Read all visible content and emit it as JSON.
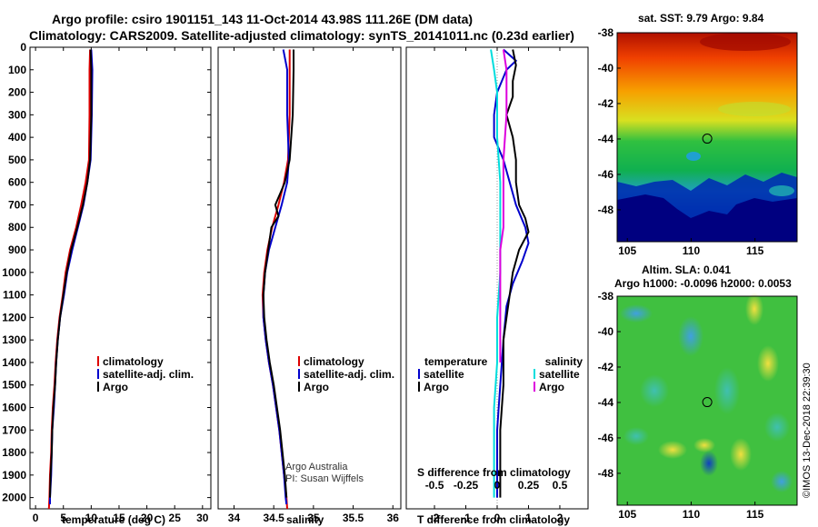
{
  "title": {
    "line1": "Argo profile: csiro 1901151_143 11-Oct-2014 43.98S 111.26E (DM data)",
    "line2": "Climatology: CARS2009. Satellite-adjusted climatology: synTS_20141011.nc (0.23d earlier)"
  },
  "credit": {
    "line1": "Argo Australia",
    "line2": "PI: Susan Wijffels"
  },
  "watermark": "©IMOS 13-Dec-2018 22:39:30",
  "colors": {
    "climatology": "#dd0000",
    "satellite": "#0000cc",
    "argo": "#000000",
    "sat_salinity": "#00dddd",
    "argo_salinity": "#dd00dd"
  },
  "chart_data": [
    {
      "type": "line",
      "id": "temperature",
      "xlabel": "temperature (deg C)",
      "ylabel": "",
      "xlim": [
        -1,
        31.5
      ],
      "ylim": [
        2050,
        0
      ],
      "xticks": [
        0,
        5,
        10,
        15,
        20,
        25,
        30
      ],
      "yticks": [
        0,
        100,
        200,
        300,
        400,
        500,
        600,
        700,
        800,
        900,
        1000,
        1100,
        1200,
        1300,
        1400,
        1500,
        1600,
        1700,
        1800,
        1900,
        2000
      ],
      "legend": [
        "climatology",
        "satellite-adj. clim.",
        "Argo"
      ],
      "series": [
        {
          "name": "climatology",
          "color": "#dd0000",
          "points": [
            [
              9.8,
              10
            ],
            [
              9.7,
              100
            ],
            [
              9.7,
              300
            ],
            [
              9.6,
              500
            ],
            [
              9.0,
              600
            ],
            [
              8.2,
              700
            ],
            [
              7.3,
              800
            ],
            [
              6.2,
              900
            ],
            [
              5.4,
              1000
            ],
            [
              4.9,
              1100
            ],
            [
              4.3,
              1200
            ],
            [
              3.9,
              1300
            ],
            [
              3.6,
              1400
            ],
            [
              3.4,
              1500
            ],
            [
              3.1,
              1600
            ],
            [
              2.9,
              1700
            ],
            [
              2.8,
              1800
            ],
            [
              2.6,
              1900
            ],
            [
              2.5,
              2000
            ],
            [
              2.4,
              2050
            ]
          ]
        },
        {
          "name": "satellite-adj. clim.",
          "color": "#0000cc",
          "points": [
            [
              10.0,
              10
            ],
            [
              10.2,
              100
            ],
            [
              10.1,
              300
            ],
            [
              9.9,
              500
            ],
            [
              9.3,
              600
            ],
            [
              8.6,
              700
            ],
            [
              7.6,
              800
            ],
            [
              6.6,
              900
            ],
            [
              5.7,
              1000
            ],
            [
              5.1,
              1100
            ],
            [
              4.4,
              1200
            ],
            [
              4.0,
              1300
            ],
            [
              3.7,
              1400
            ],
            [
              3.5,
              1500
            ],
            [
              3.3,
              1600
            ],
            [
              3.0,
              1700
            ],
            [
              2.9,
              1800
            ],
            [
              2.8,
              1900
            ],
            [
              2.6,
              2000
            ],
            [
              2.6,
              2030
            ]
          ]
        },
        {
          "name": "Argo",
          "color": "#000000",
          "points": [
            [
              9.9,
              10
            ],
            [
              10.0,
              100
            ],
            [
              10.0,
              300
            ],
            [
              9.8,
              500
            ],
            [
              9.3,
              600
            ],
            [
              8.5,
              700
            ],
            [
              7.5,
              800
            ],
            [
              6.4,
              900
            ],
            [
              5.6,
              1000
            ],
            [
              5.0,
              1100
            ],
            [
              4.4,
              1200
            ],
            [
              4.0,
              1300
            ],
            [
              3.7,
              1400
            ],
            [
              3.5,
              1500
            ],
            [
              3.2,
              1600
            ],
            [
              3.0,
              1700
            ],
            [
              2.9,
              1800
            ],
            [
              2.7,
              1900
            ],
            [
              2.6,
              2000
            ]
          ]
        }
      ]
    },
    {
      "type": "line",
      "id": "salinity",
      "xlabel": "salinity",
      "ylabel": "",
      "xlim": [
        33.8,
        36.1
      ],
      "ylim": [
        2050,
        0
      ],
      "xticks": [
        34,
        34.5,
        35,
        35.5,
        36
      ],
      "legend": [
        "climatology",
        "satellite-adj. clim.",
        "Argo"
      ],
      "series": [
        {
          "name": "climatology",
          "color": "#dd0000",
          "points": [
            [
              34.7,
              10
            ],
            [
              34.7,
              100
            ],
            [
              34.7,
              300
            ],
            [
              34.68,
              500
            ],
            [
              34.63,
              600
            ],
            [
              34.56,
              700
            ],
            [
              34.48,
              800
            ],
            [
              34.42,
              900
            ],
            [
              34.38,
              1000
            ],
            [
              34.36,
              1100
            ],
            [
              34.37,
              1200
            ],
            [
              34.4,
              1300
            ],
            [
              34.44,
              1400
            ],
            [
              34.49,
              1500
            ],
            [
              34.53,
              1600
            ],
            [
              34.57,
              1700
            ],
            [
              34.6,
              1800
            ],
            [
              34.63,
              1900
            ],
            [
              34.66,
              2000
            ],
            [
              34.67,
              2050
            ]
          ]
        },
        {
          "name": "satellite-adj. clim.",
          "color": "#0000cc",
          "points": [
            [
              34.62,
              10
            ],
            [
              34.67,
              100
            ],
            [
              34.67,
              300
            ],
            [
              34.69,
              500
            ],
            [
              34.67,
              600
            ],
            [
              34.6,
              700
            ],
            [
              34.52,
              800
            ],
            [
              34.44,
              900
            ],
            [
              34.39,
              1000
            ],
            [
              34.37,
              1100
            ],
            [
              34.37,
              1200
            ],
            [
              34.4,
              1300
            ],
            [
              34.44,
              1400
            ],
            [
              34.49,
              1500
            ],
            [
              34.53,
              1600
            ],
            [
              34.57,
              1700
            ],
            [
              34.6,
              1800
            ],
            [
              34.63,
              1900
            ],
            [
              34.65,
              2000
            ],
            [
              34.66,
              2030
            ]
          ]
        },
        {
          "name": "Argo",
          "color": "#000000",
          "points": [
            [
              34.75,
              10
            ],
            [
              34.75,
              100
            ],
            [
              34.74,
              300
            ],
            [
              34.7,
              500
            ],
            [
              34.64,
              600
            ],
            [
              34.58,
              650
            ],
            [
              34.52,
              700
            ],
            [
              34.56,
              750
            ],
            [
              34.47,
              800
            ],
            [
              34.43,
              900
            ],
            [
              34.39,
              1000
            ],
            [
              34.37,
              1100
            ],
            [
              34.38,
              1200
            ],
            [
              34.41,
              1300
            ],
            [
              34.45,
              1400
            ],
            [
              34.5,
              1500
            ],
            [
              34.54,
              1600
            ],
            [
              34.58,
              1700
            ],
            [
              34.61,
              1800
            ],
            [
              34.64,
              1900
            ],
            [
              34.66,
              2000
            ]
          ]
        }
      ]
    },
    {
      "type": "line",
      "id": "difference",
      "xlabel": "T difference from climatology",
      "xlabel2": "S difference from climatology",
      "xlim": [
        -2.9,
        2.9
      ],
      "ylim": [
        2050,
        0
      ],
      "xticks": [
        -2,
        -1,
        0,
        1,
        2
      ],
      "s_ticks": [
        "-0.5",
        "-0.25",
        "0",
        "0.25",
        "0.5"
      ],
      "legend_left_title": "temperature",
      "legend_right_title": "salinity",
      "legend_left": [
        "satellite",
        "Argo"
      ],
      "legend_right": [
        "satellite",
        "Argo"
      ],
      "series": [
        {
          "name": "satellite",
          "color": "#0000cc",
          "points": [
            [
              0.2,
              10
            ],
            [
              0.6,
              60
            ],
            [
              0.3,
              100
            ],
            [
              0.0,
              200
            ],
            [
              -0.1,
              300
            ],
            [
              -0.1,
              400
            ],
            [
              0.2,
              500
            ],
            [
              0.4,
              600
            ],
            [
              0.6,
              700
            ],
            [
              0.9,
              800
            ],
            [
              1.0,
              870
            ],
            [
              0.8,
              950
            ],
            [
              0.5,
              1050
            ],
            [
              0.3,
              1150
            ],
            [
              0.2,
              1300
            ],
            [
              0.1,
              1500
            ],
            [
              0.0,
              1700
            ],
            [
              0.0,
              1900
            ],
            [
              0.0,
              2000
            ]
          ]
        },
        {
          "name": "Argo",
          "color": "#000000",
          "points": [
            [
              0.5,
              10
            ],
            [
              0.6,
              80
            ],
            [
              0.5,
              150
            ],
            [
              0.5,
              220
            ],
            [
              0.3,
              300
            ],
            [
              0.5,
              400
            ],
            [
              0.6,
              500
            ],
            [
              0.6,
              600
            ],
            [
              0.7,
              700
            ],
            [
              0.9,
              760
            ],
            [
              1.0,
              820
            ],
            [
              0.7,
              900
            ],
            [
              0.5,
              1000
            ],
            [
              0.4,
              1100
            ],
            [
              0.3,
              1200
            ],
            [
              0.2,
              1300
            ],
            [
              0.2,
              1500
            ],
            [
              0.1,
              1700
            ],
            [
              0.1,
              1900
            ],
            [
              0.1,
              2000
            ]
          ]
        },
        {
          "name": "satellite",
          "color": "#00dddd",
          "points": [
            [
              -0.2,
              10
            ],
            [
              -0.1,
              100
            ],
            [
              0.0,
              200
            ],
            [
              0.0,
              400
            ],
            [
              0.1,
              600
            ],
            [
              0.1,
              800
            ],
            [
              0.1,
              1000
            ],
            [
              0.0,
              1200
            ],
            [
              0.0,
              1400
            ],
            [
              -0.1,
              1600
            ],
            [
              -0.1,
              1800
            ],
            [
              -0.1,
              2000
            ]
          ]
        },
        {
          "name": "Argo",
          "color": "#dd00dd",
          "points": [
            [
              0.2,
              10
            ],
            [
              0.3,
              100
            ],
            [
              0.3,
              300
            ],
            [
              0.2,
              500
            ],
            [
              0.2,
              700
            ],
            [
              0.2,
              800
            ],
            [
              0.1,
              900
            ],
            [
              0.1,
              1100
            ],
            [
              0.1,
              1300
            ],
            [
              0.1,
              1400
            ]
          ]
        }
      ]
    },
    {
      "type": "heatmap",
      "id": "sst-map",
      "title": "sat. SST: 9.79 Argo: 9.84",
      "xticks": [
        105,
        110,
        115
      ],
      "yticks": [
        -38,
        -40,
        -42,
        -44,
        -46,
        -48
      ],
      "xlim": [
        104.2,
        118.3
      ],
      "ylim": [
        -49.8,
        -38
      ],
      "marker": {
        "lon": 111.26,
        "lat": -43.98
      }
    },
    {
      "type": "heatmap",
      "id": "sla-map",
      "title": "Altim. SLA: 0.041",
      "subtitle": "Argo h1000: -0.0096 h2000: 0.0053",
      "xticks": [
        105,
        110,
        115
      ],
      "yticks": [
        -38,
        -40,
        -42,
        -44,
        -46,
        -48
      ],
      "xlim": [
        104.2,
        118.3
      ],
      "ylim": [
        -49.8,
        -38
      ],
      "marker": {
        "lon": 111.26,
        "lat": -43.98
      }
    }
  ]
}
